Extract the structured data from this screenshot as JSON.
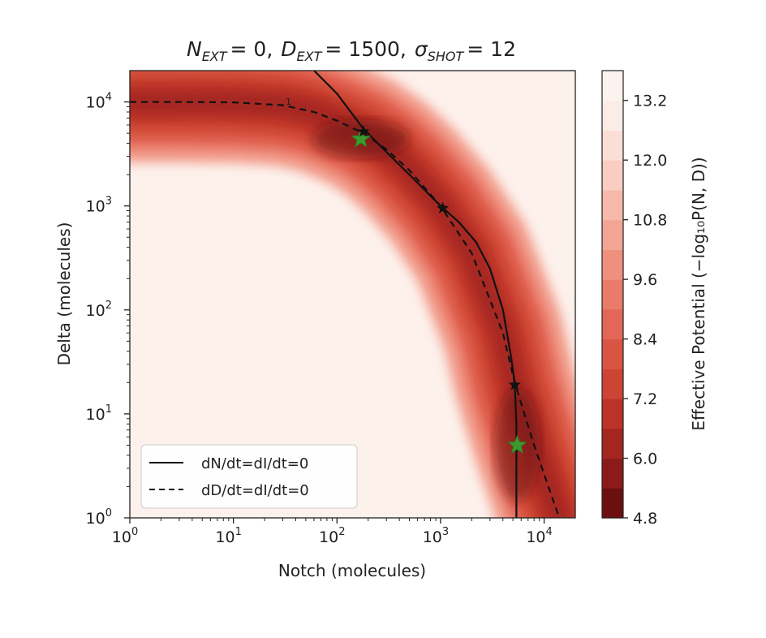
{
  "chart_data": {
    "type": "heatmap",
    "title": {
      "n_sym": "N",
      "n_sub": "EXT",
      "n_val": "= 0,",
      "d_sym": "D",
      "d_sub": "EXT",
      "d_val": "= 1500,",
      "s_sym": "σ",
      "s_sub": "SHOT",
      "s_val": "= 12"
    },
    "xlabel": "Notch (molecules)",
    "ylabel": "Delta (molecules)",
    "xscale": "log",
    "yscale": "log",
    "xlim": [
      1,
      20000
    ],
    "ylim": [
      1,
      20000
    ],
    "x_ticks": [
      {
        "value": 1,
        "base": "10",
        "exp": "0"
      },
      {
        "value": 10,
        "base": "10",
        "exp": "1"
      },
      {
        "value": 100,
        "base": "10",
        "exp": "2"
      },
      {
        "value": 1000,
        "base": "10",
        "exp": "3"
      },
      {
        "value": 10000,
        "base": "10",
        "exp": "4"
      }
    ],
    "y_ticks": [
      {
        "value": 1,
        "base": "10",
        "exp": "0"
      },
      {
        "value": 10,
        "base": "10",
        "exp": "1"
      },
      {
        "value": 100,
        "base": "10",
        "exp": "2"
      },
      {
        "value": 1000,
        "base": "10",
        "exp": "3"
      },
      {
        "value": 10000,
        "base": "10",
        "exp": "4"
      }
    ],
    "colorbar": {
      "label": "Effective Potential (−log₁₀P(N, D))",
      "min": 4.8,
      "max": 13.8,
      "ticks": [
        "13.2",
        "12.0",
        "10.8",
        "9.6",
        "8.4",
        "7.2",
        "6.0",
        "4.8"
      ],
      "colors": [
        "#6b0f0f",
        "#8b1a1a",
        "#a52620",
        "#bb3228",
        "#cc4433",
        "#d95443",
        "#e36656",
        "#ea7a69",
        "#ef8f7e",
        "#f3a595",
        "#f6b9ab",
        "#f9cdc1",
        "#fbded5",
        "#fcece6",
        "#fdf3ee"
      ]
    },
    "legend": {
      "placement": "lower-left",
      "entries": [
        {
          "label": "dN/dt=dI/dt=0",
          "style": "solid"
        },
        {
          "label": "dD/dt=dI/dt=0",
          "style": "dashed"
        }
      ]
    },
    "series": [
      {
        "label": "dN/dt=dI/dt=0",
        "style": "solid",
        "x": [
          60,
          100,
          180,
          300,
          500,
          800,
          1000,
          1500,
          2200,
          3000,
          4000,
          4800,
          5200,
          5400,
          5400
        ],
        "y": [
          20000,
          12000,
          5500,
          3300,
          2000,
          1250,
          1000,
          700,
          450,
          250,
          100,
          35,
          20,
          8,
          1
        ]
      },
      {
        "label": "dD/dt=dI/dt=0",
        "style": "dashed",
        "x": [
          1,
          3,
          10,
          30,
          60,
          100,
          180,
          300,
          500,
          1000,
          2000,
          4000,
          5200,
          8000,
          14000
        ],
        "y": [
          10000,
          10000,
          9900,
          9300,
          8000,
          6600,
          5000,
          3500,
          2200,
          1000,
          350,
          60,
          20,
          5,
          1
        ]
      }
    ],
    "fixed_points_black": [
      {
        "x": 180,
        "y": 5200
      },
      {
        "x": 1050,
        "y": 950
      },
      {
        "x": 5200,
        "y": 19
      }
    ],
    "minima_green": [
      {
        "x": 170,
        "y": 4400
      },
      {
        "x": 5500,
        "y": 5
      }
    ],
    "annotation": "1"
  }
}
